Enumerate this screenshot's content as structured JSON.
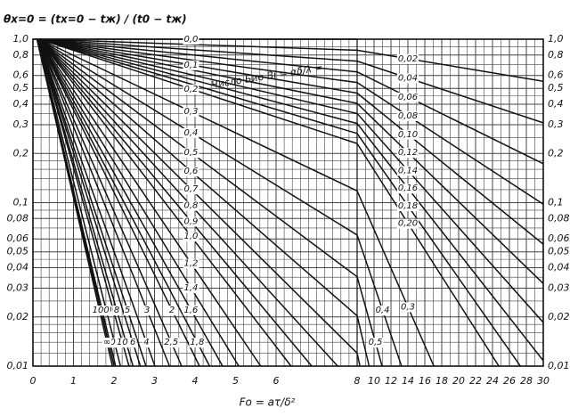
{
  "chart_data": [
    {
      "type": "line",
      "ylabel": "θx=0 = (tx=0 − tж) / (t0 − tж)",
      "xlabel": "Fo = aτ/δ²",
      "annotation": "Число Био Bi = αδ/λ =",
      "log_y": true,
      "grid": true,
      "color": "#111111",
      "xlim": [
        0,
        8
      ],
      "xticks": [
        0,
        1,
        2,
        3,
        4,
        5,
        6
      ],
      "xgrid": [
        0.2,
        0.4,
        0.6,
        0.8,
        1,
        1.2,
        1.4,
        1.6,
        1.8,
        2,
        2.2,
        2.4,
        2.6,
        2.8,
        3,
        3.2,
        3.4,
        3.6,
        3.8,
        4,
        4.2,
        4.4,
        4.6,
        4.8,
        5,
        5.2,
        5.4,
        5.6,
        5.8,
        6,
        6.2,
        6.4,
        6.6,
        6.8,
        7,
        7.2,
        7.4,
        7.6,
        7.8
      ],
      "ylim": [
        0.01,
        1
      ],
      "yticks": [
        {
          "value": 1,
          "label": "1,0"
        },
        {
          "value": 0.8,
          "label": "0,8"
        },
        {
          "value": 0.6,
          "label": "0,6"
        },
        {
          "value": 0.5,
          "label": "0,5"
        },
        {
          "value": 0.4,
          "label": "0,4"
        },
        {
          "value": 0.3,
          "label": "0,3"
        },
        {
          "value": 0.2,
          "label": "0,2"
        },
        {
          "value": 0.1,
          "label": "0,1"
        },
        {
          "value": 0.08,
          "label": "0,08"
        },
        {
          "value": 0.06,
          "label": "0,06"
        },
        {
          "value": 0.05,
          "label": "0,05"
        },
        {
          "value": 0.04,
          "label": "0,04"
        },
        {
          "value": 0.03,
          "label": "0,03"
        },
        {
          "value": 0.02,
          "label": "0,02"
        },
        {
          "value": 0.01,
          "label": "0,01"
        }
      ],
      "ygrid": [
        0.012,
        0.014,
        0.016,
        0.018,
        0.025,
        0.035,
        0.045,
        0.07,
        0.09,
        0.12,
        0.14,
        0.16,
        0.18,
        0.25,
        0.35,
        0.45,
        0.7,
        0.9
      ],
      "series": [
        {
          "name": "0,0",
          "x": [
            0,
            8
          ],
          "values": [
            1,
            1
          ]
        },
        {
          "name": null,
          "x": [
            0.166,
            8
          ],
          "values": [
            1,
            0.856
          ]
        },
        {
          "name": null,
          "x": [
            0.162,
            8
          ],
          "values": [
            1,
            0.734
          ]
        },
        {
          "name": null,
          "x": [
            0.163,
            8
          ],
          "values": [
            1,
            0.631
          ]
        },
        {
          "name": null,
          "x": [
            0.164,
            8
          ],
          "values": [
            1,
            0.543
          ]
        },
        {
          "name": "0,1",
          "x": [
            0.165,
            8
          ],
          "values": [
            1,
            0.468
          ]
        },
        {
          "name": null,
          "x": [
            0.166,
            8
          ],
          "values": [
            1,
            0.405
          ]
        },
        {
          "name": null,
          "x": [
            0.168,
            8
          ],
          "values": [
            1,
            0.351
          ]
        },
        {
          "name": null,
          "x": [
            0.169,
            8
          ],
          "values": [
            1,
            0.305
          ]
        },
        {
          "name": null,
          "x": [
            0.17,
            8
          ],
          "values": [
            1,
            0.265
          ]
        },
        {
          "name": "0,2",
          "x": [
            0.163,
            8
          ],
          "values": [
            1,
            0.23
          ]
        },
        {
          "name": "0,3",
          "x": [
            0.162,
            8
          ],
          "values": [
            1,
            0.118
          ]
        },
        {
          "name": "0,4",
          "x": [
            0.16,
            8
          ],
          "values": [
            1,
            0.0634
          ]
        },
        {
          "name": "0,5",
          "x": [
            0.159,
            8
          ],
          "values": [
            1,
            0.0352
          ]
        },
        {
          "name": "0,6",
          "x": [
            0.157,
            8
          ],
          "values": [
            1,
            0.0203
          ]
        },
        {
          "name": "0,7",
          "x": [
            0.156,
            8
          ],
          "values": [
            1,
            0.012
          ]
        },
        {
          "name": "0,8",
          "x": [
            0.155,
            7.52
          ],
          "values": [
            1,
            0.01
          ]
        },
        {
          "name": "0,9",
          "x": [
            0.153,
            6.88
          ],
          "values": [
            1,
            0.01
          ]
        },
        {
          "name": "1,0",
          "x": [
            0.152,
            6.37
          ],
          "values": [
            1,
            0.01
          ]
        },
        {
          "name": "1,2",
          "x": [
            0.15,
            5.62
          ],
          "values": [
            1,
            0.01
          ]
        },
        {
          "name": "1,4",
          "x": [
            0.148,
            5.08
          ],
          "values": [
            1,
            0.01
          ]
        },
        {
          "name": "1,6",
          "x": [
            0.145,
            4.68
          ],
          "values": [
            1,
            0.01
          ]
        },
        {
          "name": "1,8",
          "x": [
            0.143,
            4.36
          ],
          "values": [
            1,
            0.01
          ]
        },
        {
          "name": "2",
          "x": [
            0.142,
            4.11
          ],
          "values": [
            1,
            0.01
          ]
        },
        {
          "name": "2,5",
          "x": [
            0.137,
            3.67
          ],
          "values": [
            1,
            0.01
          ]
        },
        {
          "name": "3",
          "x": [
            0.134,
            3.37
          ],
          "values": [
            1,
            0.01
          ]
        },
        {
          "name": "4",
          "x": [
            0.129,
            3.01
          ],
          "values": [
            1,
            0.01
          ]
        },
        {
          "name": "5",
          "x": [
            0.125,
            2.79
          ],
          "values": [
            1,
            0.01
          ]
        },
        {
          "name": "6",
          "x": [
            0.122,
            2.65
          ],
          "values": [
            1,
            0.01
          ]
        },
        {
          "name": "8",
          "x": [
            0.117,
            2.47
          ],
          "values": [
            1,
            0.01
          ]
        },
        {
          "name": "10",
          "x": [
            0.114,
            2.37
          ],
          "values": [
            1,
            0.01
          ]
        },
        {
          "name": "20",
          "x": [
            0.107,
            2.16
          ],
          "values": [
            1,
            0.01
          ]
        },
        {
          "name": "50",
          "x": [
            0.102,
            2.04
          ],
          "values": [
            1,
            0.01
          ]
        },
        {
          "name": "100",
          "x": [
            0.1,
            2.0
          ],
          "values": [
            1,
            0.01
          ]
        },
        {
          "name": "∞",
          "x": [
            0.098,
            1.96
          ],
          "values": [
            1,
            0.01
          ]
        }
      ]
    },
    {
      "type": "line",
      "log_y": true,
      "grid": true,
      "color": "#111111",
      "xlim": [
        8,
        30
      ],
      "xticks": [
        8,
        10,
        12,
        14,
        16,
        18,
        20,
        22,
        24,
        26,
        28,
        30
      ],
      "xgrid": [
        9,
        11,
        13,
        15,
        17,
        19,
        21,
        23,
        25,
        27,
        29
      ],
      "ylim": [
        0.01,
        1
      ],
      "yticks": [
        {
          "value": 1,
          "label": "1,0"
        },
        {
          "value": 0.8,
          "label": "0,8"
        },
        {
          "value": 0.6,
          "label": "0,6"
        },
        {
          "value": 0.5,
          "label": "0,5"
        },
        {
          "value": 0.4,
          "label": "0,4"
        },
        {
          "value": 0.3,
          "label": "0,3"
        },
        {
          "value": 0.2,
          "label": "0,2"
        },
        {
          "value": 0.1,
          "label": "0,1"
        },
        {
          "value": 0.08,
          "label": "0,08"
        },
        {
          "value": 0.06,
          "label": "0,06"
        },
        {
          "value": 0.05,
          "label": "0,05"
        },
        {
          "value": 0.04,
          "label": "0,04"
        },
        {
          "value": 0.03,
          "label": "0,03"
        },
        {
          "value": 0.02,
          "label": "0,02"
        },
        {
          "value": 0.01,
          "label": "0,01"
        }
      ],
      "ygrid": [
        0.012,
        0.014,
        0.016,
        0.018,
        0.025,
        0.035,
        0.045,
        0.07,
        0.09,
        0.12,
        0.14,
        0.16,
        0.18,
        0.25,
        0.35,
        0.45,
        0.7,
        0.9
      ],
      "series": [
        {
          "name": "0,02",
          "x": [
            8,
            30
          ],
          "values": [
            0.856,
            0.553
          ]
        },
        {
          "name": "0,04",
          "x": [
            8,
            30
          ],
          "values": [
            0.734,
            0.308
          ]
        },
        {
          "name": "0,06",
          "x": [
            8,
            30
          ],
          "values": [
            0.631,
            0.173
          ]
        },
        {
          "name": "0,08",
          "x": [
            8,
            30
          ],
          "values": [
            0.543,
            0.0978
          ]
        },
        {
          "name": "0,10",
          "x": [
            8,
            30
          ],
          "values": [
            0.468,
            0.0557
          ]
        },
        {
          "name": "0,12",
          "x": [
            8,
            30
          ],
          "values": [
            0.405,
            0.032
          ]
        },
        {
          "name": "0,14",
          "x": [
            8,
            30
          ],
          "values": [
            0.351,
            0.0185
          ]
        },
        {
          "name": "0,16",
          "x": [
            8,
            30
          ],
          "values": [
            0.305,
            0.0108
          ]
        },
        {
          "name": "0,18",
          "x": [
            8,
            27.3
          ],
          "values": [
            0.265,
            0.01
          ]
        },
        {
          "name": "0,20",
          "x": [
            8,
            24.75
          ],
          "values": [
            0.23,
            0.01
          ]
        },
        {
          "name": "0,3",
          "x": [
            8,
            17.07
          ],
          "values": [
            0.118,
            0.01
          ]
        },
        {
          "name": "0,4",
          "x": [
            8,
            13.25
          ],
          "values": [
            0.0634,
            0.01
          ]
        },
        {
          "name": "0,5",
          "x": [
            8,
            10.95
          ],
          "values": [
            0.0352,
            0.01
          ]
        },
        {
          "name": null,
          "x": [
            8,
            9.42
          ],
          "values": [
            0.0203,
            0.01
          ]
        },
        {
          "name": null,
          "x": [
            8,
            8.33
          ],
          "values": [
            0.012,
            0.01
          ]
        }
      ]
    }
  ]
}
